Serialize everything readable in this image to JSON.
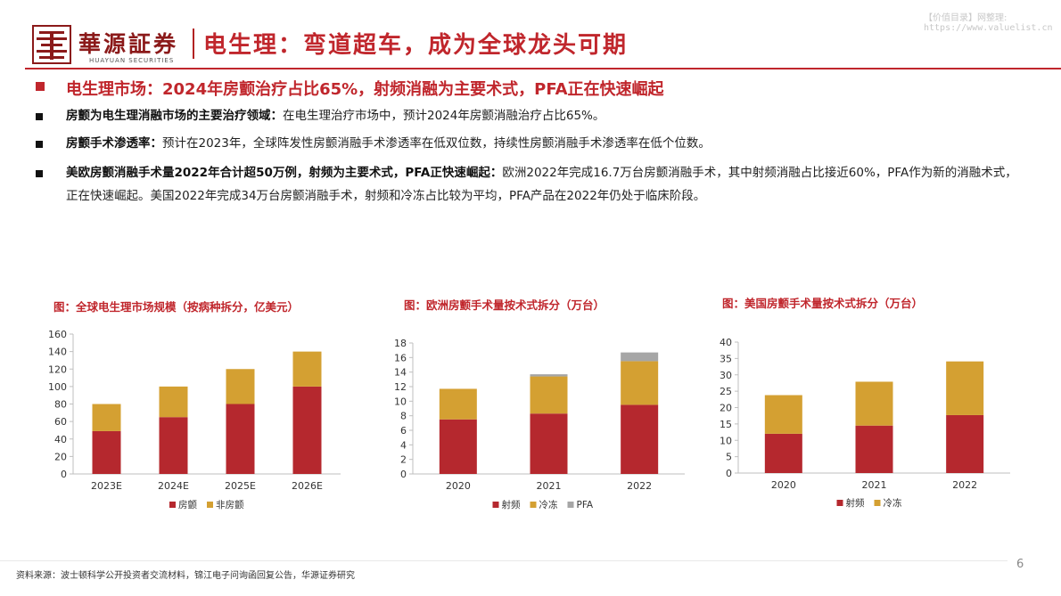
{
  "header": {
    "brand_cn": "華源証券",
    "brand_en": "HUAYUAN SECURITIES",
    "title": "电生理：弯道超车，成为全球龙头可期",
    "watermark_line1": "【价值目录】网整理:",
    "watermark_line2": "https://www.valuelist.cn"
  },
  "section": {
    "title": "电生理市场：2024年房颤治疗占比65%，射频消融为主要术式，PFA正在快速崛起"
  },
  "bullets": [
    {
      "bold": "房颤为电生理消融市场的主要治疗领域：",
      "text": "在电生理治疗市场中，预计2024年房颤消融治疗占比65%。"
    },
    {
      "bold": "房颤手术渗透率：",
      "text": "预计在2023年，全球阵发性房颤消融手术渗透率在低双位数，持续性房颤消融手术渗透率在低个位数。"
    },
    {
      "bold": "美欧房颤消融手术量2022年合计超50万例，射频为主要术式，PFA正快速崛起：",
      "text": "欧洲2022年完成16.7万台房颤消融手术，其中射频消融占比接近60%，PFA作为新的消融术式，正在快速崛起。美国2022年完成34万台房颤消融手术，射频和冷冻占比较为平均，PFA产品在2022年仍处于临床阶段。"
    }
  ],
  "chart_data": [
    {
      "type": "bar",
      "stacked": true,
      "title": "图：全球电生理市场规模（按病种拆分，亿美元）",
      "categories": [
        "2023E",
        "2024E",
        "2025E",
        "2026E"
      ],
      "series": [
        {
          "name": "房颤",
          "values": [
            49,
            65,
            80,
            100
          ],
          "color": "#b5282e"
        },
        {
          "name": "非房颤",
          "values": [
            31,
            35,
            40,
            40
          ],
          "color": "#d4a032"
        }
      ],
      "ylim": [
        0,
        160
      ],
      "yticks": [
        0,
        20,
        40,
        60,
        80,
        100,
        120,
        140,
        160
      ],
      "legend": "bottom"
    },
    {
      "type": "bar",
      "stacked": true,
      "title": "图：欧洲房颤手术量按术式拆分（万台）",
      "categories": [
        "2020",
        "2021",
        "2022"
      ],
      "series": [
        {
          "name": "射频",
          "values": [
            7.5,
            8.3,
            9.5
          ],
          "color": "#b5282e"
        },
        {
          "name": "冷冻",
          "values": [
            4.2,
            5.1,
            6.0
          ],
          "color": "#d4a032"
        },
        {
          "name": "PFA",
          "values": [
            0,
            0.3,
            1.2
          ],
          "color": "#a6a6a6"
        }
      ],
      "ylim": [
        0,
        18
      ],
      "yticks": [
        0,
        2,
        4,
        6,
        8,
        10,
        12,
        14,
        16,
        18
      ],
      "legend": "bottom"
    },
    {
      "type": "bar",
      "stacked": true,
      "title": "图：美国房颤手术量按术式拆分（万台）",
      "categories": [
        "2020",
        "2021",
        "2022"
      ],
      "series": [
        {
          "name": "射频",
          "values": [
            12,
            14.5,
            17.7
          ],
          "color": "#b5282e"
        },
        {
          "name": "冷冻",
          "values": [
            11.8,
            13.4,
            16.4
          ],
          "color": "#d4a032"
        }
      ],
      "ylim": [
        0,
        40
      ],
      "yticks": [
        0,
        5,
        10,
        15,
        20,
        25,
        30,
        35,
        40
      ],
      "legend": "bottom"
    }
  ],
  "footer": {
    "source": "资料来源：波士顿科学公开投资者交流材料，锦江电子问询函回复公告，华源证券研究",
    "page_number": "6"
  }
}
